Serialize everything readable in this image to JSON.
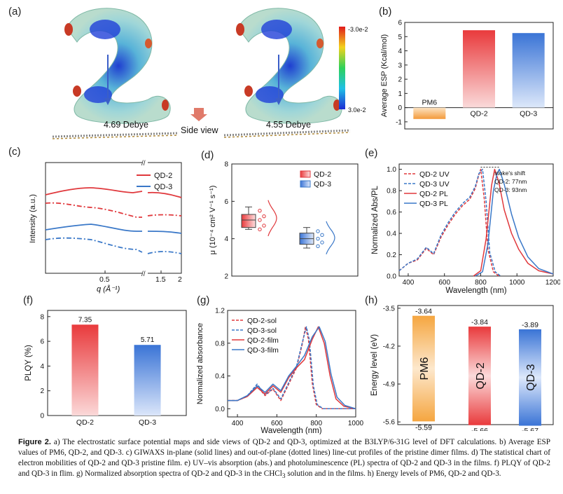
{
  "panels": {
    "a": {
      "letter": "(a)",
      "dipole_qd2": "4.69 Debye",
      "dipole_qd3": "4.55 Debye",
      "side_view": "Side view",
      "colorbar_max": "-3.0e-2",
      "colorbar_min": "3.0e-2"
    },
    "b": {
      "letter": "(b)"
    },
    "c": {
      "letter": "(c)"
    },
    "d": {
      "letter": "(d)"
    },
    "e": {
      "letter": "(e)",
      "annot_title": "stoke's shift",
      "annot_qd2": "QD-2: 77nm",
      "annot_qd3": "QD-3: 93nm"
    },
    "f": {
      "letter": "(f)"
    },
    "g": {
      "letter": "(g)"
    },
    "h": {
      "letter": "(h)"
    }
  },
  "colors": {
    "qd2": "#e0383c",
    "qd3": "#3a78c8",
    "pm6": "#f0a44a"
  },
  "chart_data": [
    {
      "id": "b",
      "type": "bar",
      "title": "",
      "ylabel": "Average ESP (Kcal/mol)",
      "xlabel": "",
      "categories": [
        "PM6",
        "QD-2",
        "QD-3"
      ],
      "values": [
        -0.8,
        5.45,
        5.25
      ],
      "ylim": [
        -1.5,
        6
      ],
      "yticks": [
        "-1",
        "0",
        "1",
        "2",
        "3",
        "4",
        "5",
        "6"
      ]
    },
    {
      "id": "c",
      "type": "line",
      "xlabel": "q (Å⁻¹)",
      "ylabel": "Intensity (a.u.)",
      "xticks": [
        "0.5",
        "1.5",
        "2"
      ],
      "break_mark": "//",
      "series": [
        {
          "name": "QD-2"
        },
        {
          "name": "QD-3"
        }
      ]
    },
    {
      "id": "d",
      "type": "box",
      "ylabel": "μ (10⁻⁴ cm² V⁻¹ s⁻¹)",
      "ylim": [
        2,
        8
      ],
      "yticks": [
        "2",
        "4",
        "6",
        "8"
      ],
      "series": [
        {
          "name": "QD-2",
          "min": 4.5,
          "q1": 4.6,
          "median": 5.0,
          "q3": 5.3,
          "max": 5.7,
          "points": [
            4.5,
            4.7,
            5.0,
            5.2,
            5.5
          ]
        },
        {
          "name": "QD-3",
          "min": 3.5,
          "q1": 3.7,
          "median": 4.0,
          "q3": 4.3,
          "max": 4.6,
          "points": [
            3.6,
            3.8,
            4.0,
            4.2,
            4.4
          ]
        }
      ]
    },
    {
      "id": "e",
      "type": "line",
      "xlabel": "Wavelength (nm)",
      "ylabel": "Normalized Abs/PL",
      "xlim": [
        350,
        1200
      ],
      "ylim": [
        0,
        1.05
      ],
      "xticks": [
        "400",
        "600",
        "800",
        "1000",
        "1200"
      ],
      "yticks": [
        "0.0",
        "0.2",
        "0.4",
        "0.6",
        "0.8",
        "1.0"
      ],
      "series": [
        {
          "name": "QD-2 UV",
          "style": "dash",
          "color": "qd2",
          "x": [
            350,
            400,
            450,
            500,
            540,
            580,
            620,
            660,
            700,
            740,
            770,
            790,
            800,
            820,
            840,
            870,
            900
          ],
          "y": [
            0.05,
            0.12,
            0.15,
            0.26,
            0.2,
            0.36,
            0.48,
            0.58,
            0.66,
            0.72,
            0.82,
            0.95,
            1.0,
            0.72,
            0.25,
            0.04,
            0.0
          ]
        },
        {
          "name": "QD-3 UV",
          "style": "dash",
          "color": "qd3",
          "x": [
            350,
            400,
            450,
            500,
            540,
            580,
            620,
            660,
            700,
            740,
            770,
            790,
            810,
            830,
            850,
            880,
            910
          ],
          "y": [
            0.05,
            0.12,
            0.16,
            0.27,
            0.21,
            0.38,
            0.5,
            0.6,
            0.68,
            0.74,
            0.84,
            0.96,
            1.0,
            0.7,
            0.22,
            0.04,
            0.0
          ]
        },
        {
          "name": "QD-2 PL",
          "style": "solid",
          "color": "qd2",
          "x": [
            760,
            800,
            830,
            860,
            877,
            900,
            930,
            970,
            1010,
            1060,
            1120,
            1200
          ],
          "y": [
            0.0,
            0.05,
            0.35,
            0.85,
            1.0,
            0.88,
            0.62,
            0.4,
            0.25,
            0.12,
            0.05,
            0.02
          ]
        },
        {
          "name": "QD-3 PL",
          "style": "solid",
          "color": "qd3",
          "x": [
            770,
            810,
            840,
            870,
            890,
            903,
            930,
            970,
            1010,
            1060,
            1120,
            1200
          ],
          "y": [
            0.0,
            0.04,
            0.3,
            0.8,
            0.96,
            1.0,
            0.86,
            0.58,
            0.36,
            0.18,
            0.07,
            0.02
          ]
        }
      ]
    },
    {
      "id": "f",
      "type": "bar",
      "ylabel": "PLQY (%)",
      "categories": [
        "QD-2",
        "QD-3"
      ],
      "values": [
        7.35,
        5.71
      ],
      "value_labels": [
        "7.35",
        "5.71"
      ],
      "ylim": [
        0,
        8.5
      ],
      "yticks": [
        "0",
        "2",
        "4",
        "6",
        "8"
      ]
    },
    {
      "id": "g",
      "type": "line",
      "xlabel": "Wavelength (nm)",
      "ylabel": "Normalized absorbance",
      "xlim": [
        350,
        1000
      ],
      "ylim": [
        -0.1,
        1.2
      ],
      "xticks": [
        "400",
        "600",
        "800",
        "1000"
      ],
      "yticks": [
        "0.0",
        "0.4",
        "0.8",
        "1.2"
      ],
      "series": [
        {
          "name": "QD-2-sol",
          "style": "dash",
          "color": "qd2",
          "x": [
            350,
            400,
            450,
            500,
            540,
            580,
            620,
            660,
            700,
            730,
            745,
            760,
            780,
            800,
            830,
            900,
            1000
          ],
          "y": [
            0.1,
            0.1,
            0.15,
            0.28,
            0.16,
            0.24,
            0.1,
            0.3,
            0.5,
            0.8,
            1.0,
            0.85,
            0.3,
            0.05,
            0.0,
            0.0,
            0.0
          ]
        },
        {
          "name": "QD-3-sol",
          "style": "dash",
          "color": "qd3",
          "x": [
            350,
            400,
            450,
            500,
            540,
            580,
            620,
            660,
            700,
            730,
            750,
            765,
            785,
            805,
            835,
            900,
            1000
          ],
          "y": [
            0.1,
            0.1,
            0.16,
            0.3,
            0.17,
            0.25,
            0.12,
            0.32,
            0.52,
            0.82,
            1.0,
            0.84,
            0.28,
            0.05,
            0.0,
            0.0,
            0.0
          ]
        },
        {
          "name": "QD-2-film",
          "style": "solid",
          "color": "qd2",
          "x": [
            350,
            400,
            450,
            500,
            540,
            580,
            620,
            660,
            700,
            740,
            780,
            810,
            840,
            870,
            900,
            940,
            1000
          ],
          "y": [
            0.1,
            0.1,
            0.15,
            0.26,
            0.18,
            0.28,
            0.2,
            0.38,
            0.5,
            0.6,
            0.85,
            1.0,
            0.8,
            0.4,
            0.12,
            0.03,
            0.0
          ]
        },
        {
          "name": "QD-3-film",
          "style": "solid",
          "color": "qd3",
          "x": [
            350,
            400,
            450,
            500,
            540,
            580,
            620,
            660,
            700,
            740,
            780,
            815,
            845,
            875,
            905,
            945,
            1000
          ],
          "y": [
            0.1,
            0.1,
            0.16,
            0.28,
            0.2,
            0.3,
            0.22,
            0.4,
            0.52,
            0.65,
            0.88,
            1.0,
            0.82,
            0.42,
            0.14,
            0.04,
            0.0
          ]
        }
      ]
    },
    {
      "id": "h",
      "type": "bar",
      "ylabel": "Energy level (eV)",
      "ylim": [
        -5.65,
        -3.45
      ],
      "yticks": [
        "-3.5",
        "-4.2",
        "-4.9",
        "-5.6"
      ],
      "categories": [
        "PM6",
        "QD-2",
        "QD-3"
      ],
      "homo": [
        -5.59,
        -5.66,
        -5.67
      ],
      "lumo": [
        -3.64,
        -3.84,
        -3.89
      ],
      "homo_labels": [
        "-5.59",
        "-5.66",
        "-5.67"
      ],
      "lumo_labels": [
        "-3.64",
        "-3.84",
        "-3.89"
      ]
    }
  ],
  "caption": {
    "label": "Figure 2.",
    "text": " a) The electrostatic surface potential maps and side views of QD-2 and QD-3, optimized at the B3LYP/6-31G level of DFT calculations. b) Average ESP values of PM6, QD-2, and QD-3. c) GIWAXS in-plane (solid lines) and out-of-plane (dotted lines) line-cut profiles of the pristine dimer films. d) The statistical chart of electron mobilities of QD-2 and QD-3 pristine film. e) UV–vis absorption (abs.) and photoluminescence (PL) spectra of QD-2 and QD-3 in the films. f) PLQY of QD-2 and QD-3 in flim. g) Normalized absorption spectra of QD-2 and QD-3 in the CHCl",
    "sub": "3",
    "text2": " solution and in the films. h) Energy levels of PM6, QD-2 and QD-3."
  }
}
